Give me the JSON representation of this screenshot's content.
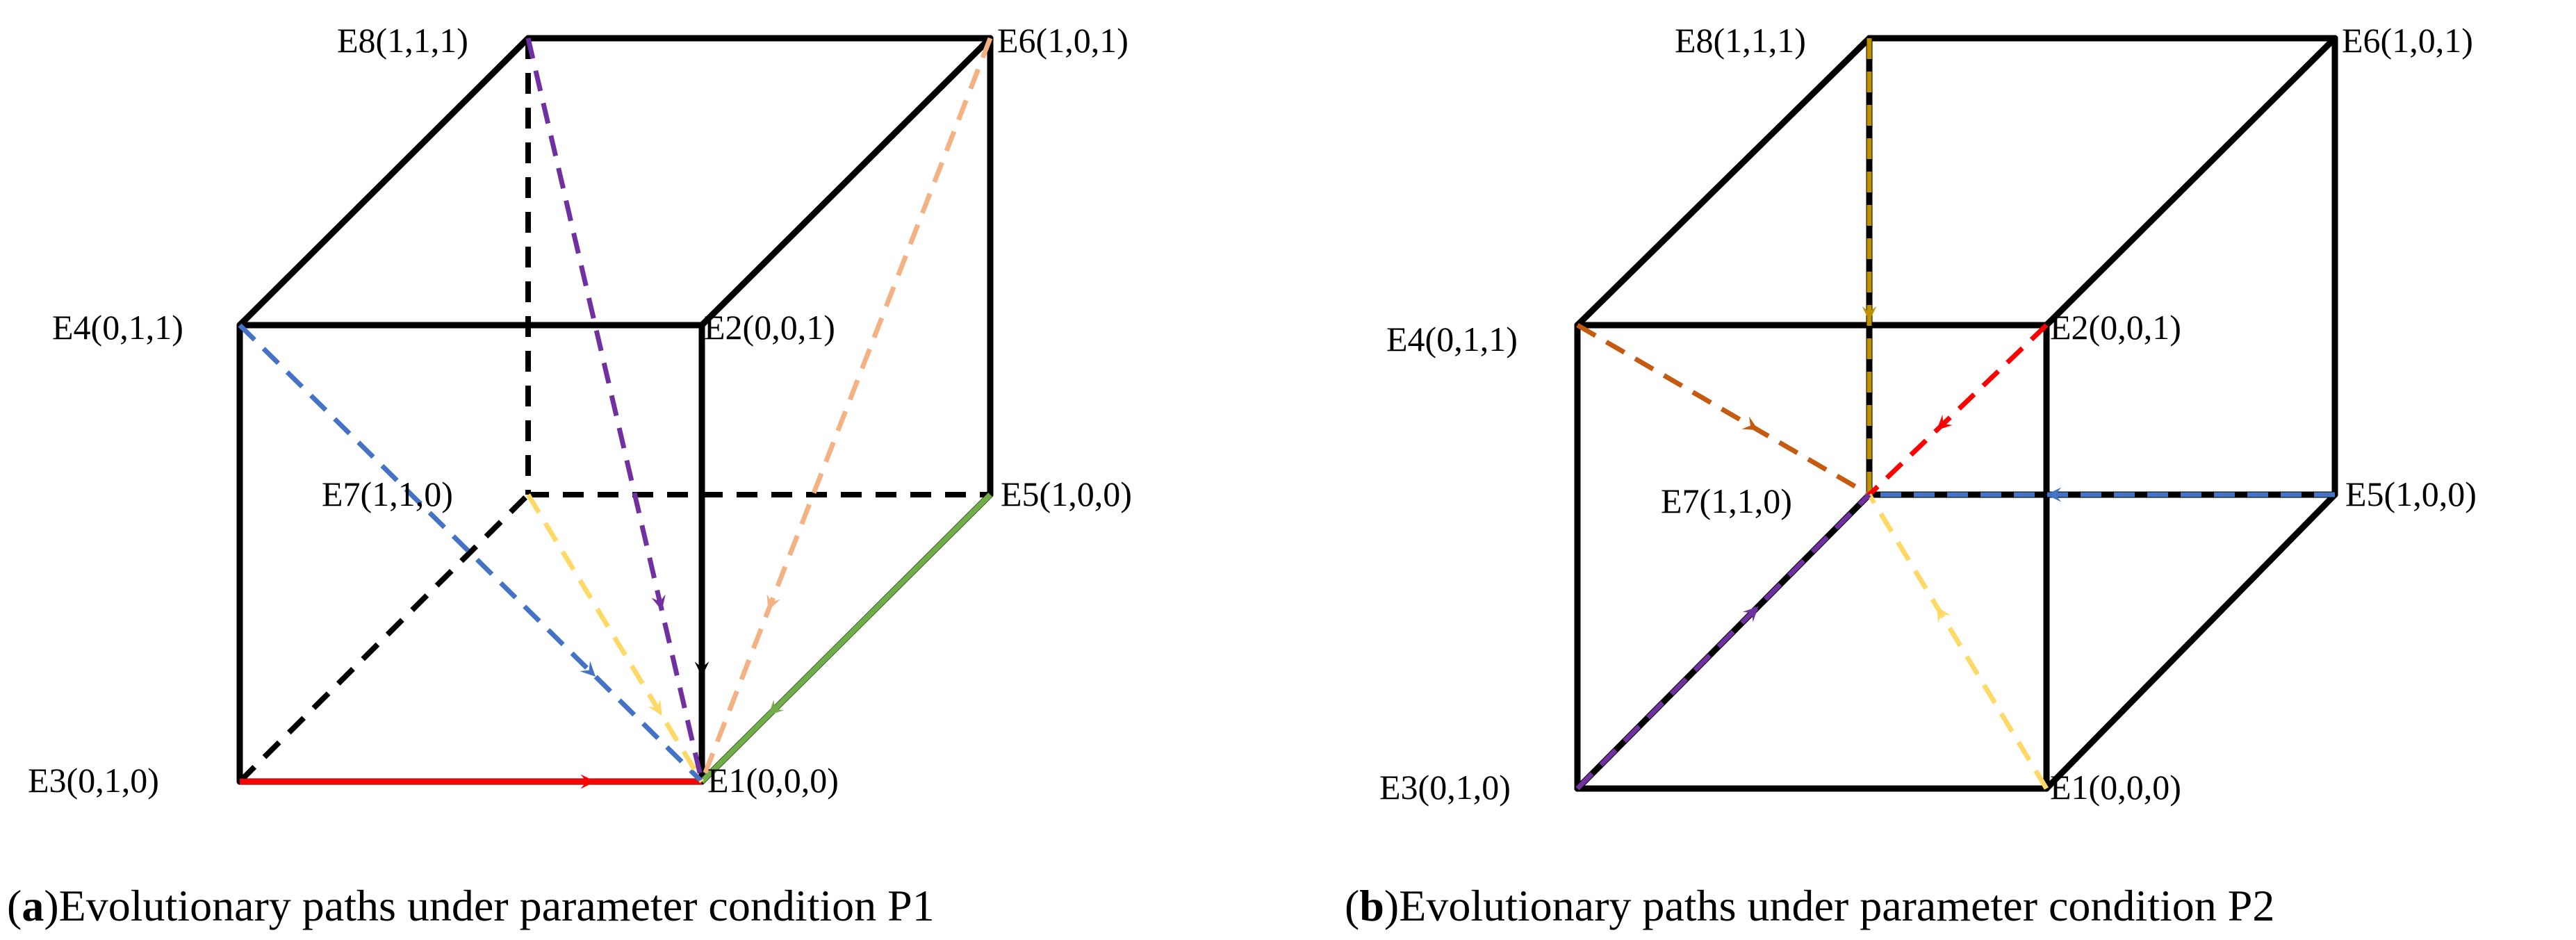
{
  "panels": [
    {
      "id": "a",
      "caption_letter": "a",
      "caption_open": "(",
      "caption_rest": ")Evolutionary paths under parameter condition P1",
      "vertices": {
        "E1": "E1(0,0,0)",
        "E2": "E2(0,0,1)",
        "E3": "E3(0,1,0)",
        "E4": "E4(0,1,1)",
        "E5": "E5(1,0,0)",
        "E6": "E6(1,0,1)",
        "E7": "E7(1,1,0)",
        "E8": "E8(1,1,1)"
      },
      "paths": [
        {
          "from": "E2",
          "to": "E1",
          "color": "#000000",
          "style": "solid"
        },
        {
          "from": "E3",
          "to": "E1",
          "color": "#ff0000",
          "style": "solid"
        },
        {
          "from": "E5",
          "to": "E1",
          "color": "#70ad47",
          "style": "solid"
        },
        {
          "from": "E4",
          "to": "E1",
          "color": "#4472c4",
          "style": "dashed"
        },
        {
          "from": "E7",
          "to": "E1",
          "color": "#ffd966",
          "style": "dashed"
        },
        {
          "from": "E8",
          "to": "E1",
          "color": "#7030a0",
          "style": "dashed"
        },
        {
          "from": "E6",
          "to": "E1",
          "color": "#f4b183",
          "style": "dashed"
        }
      ]
    },
    {
      "id": "b",
      "caption_letter": "b",
      "caption_open": "(",
      "caption_rest": ")Evolutionary paths under parameter condition P2",
      "vertices": {
        "E1": "E1(0,0,0)",
        "E2": "E2(0,0,1)",
        "E3": "E3(0,1,0)",
        "E4": "E4(0,1,1)",
        "E5": "E5(1,0,0)",
        "E6": "E6(1,0,1)",
        "E7": "E7(1,1,0)",
        "E8": "E8(1,1,1)"
      },
      "paths": [
        {
          "from": "E8",
          "to": "E7",
          "color": "#bf9000",
          "style": "dashed"
        },
        {
          "from": "E4",
          "to": "E7",
          "color": "#c55a11",
          "style": "dashed"
        },
        {
          "from": "E2",
          "to": "E7",
          "color": "#ff0000",
          "style": "dashed"
        },
        {
          "from": "E5",
          "to": "E7",
          "color": "#4472c4",
          "style": "dashed"
        },
        {
          "from": "E1",
          "to": "E7",
          "color": "#ffd966",
          "style": "dashed"
        },
        {
          "from": "E3",
          "to": "E7",
          "color": "#7030a0",
          "style": "dashed"
        }
      ]
    }
  ]
}
